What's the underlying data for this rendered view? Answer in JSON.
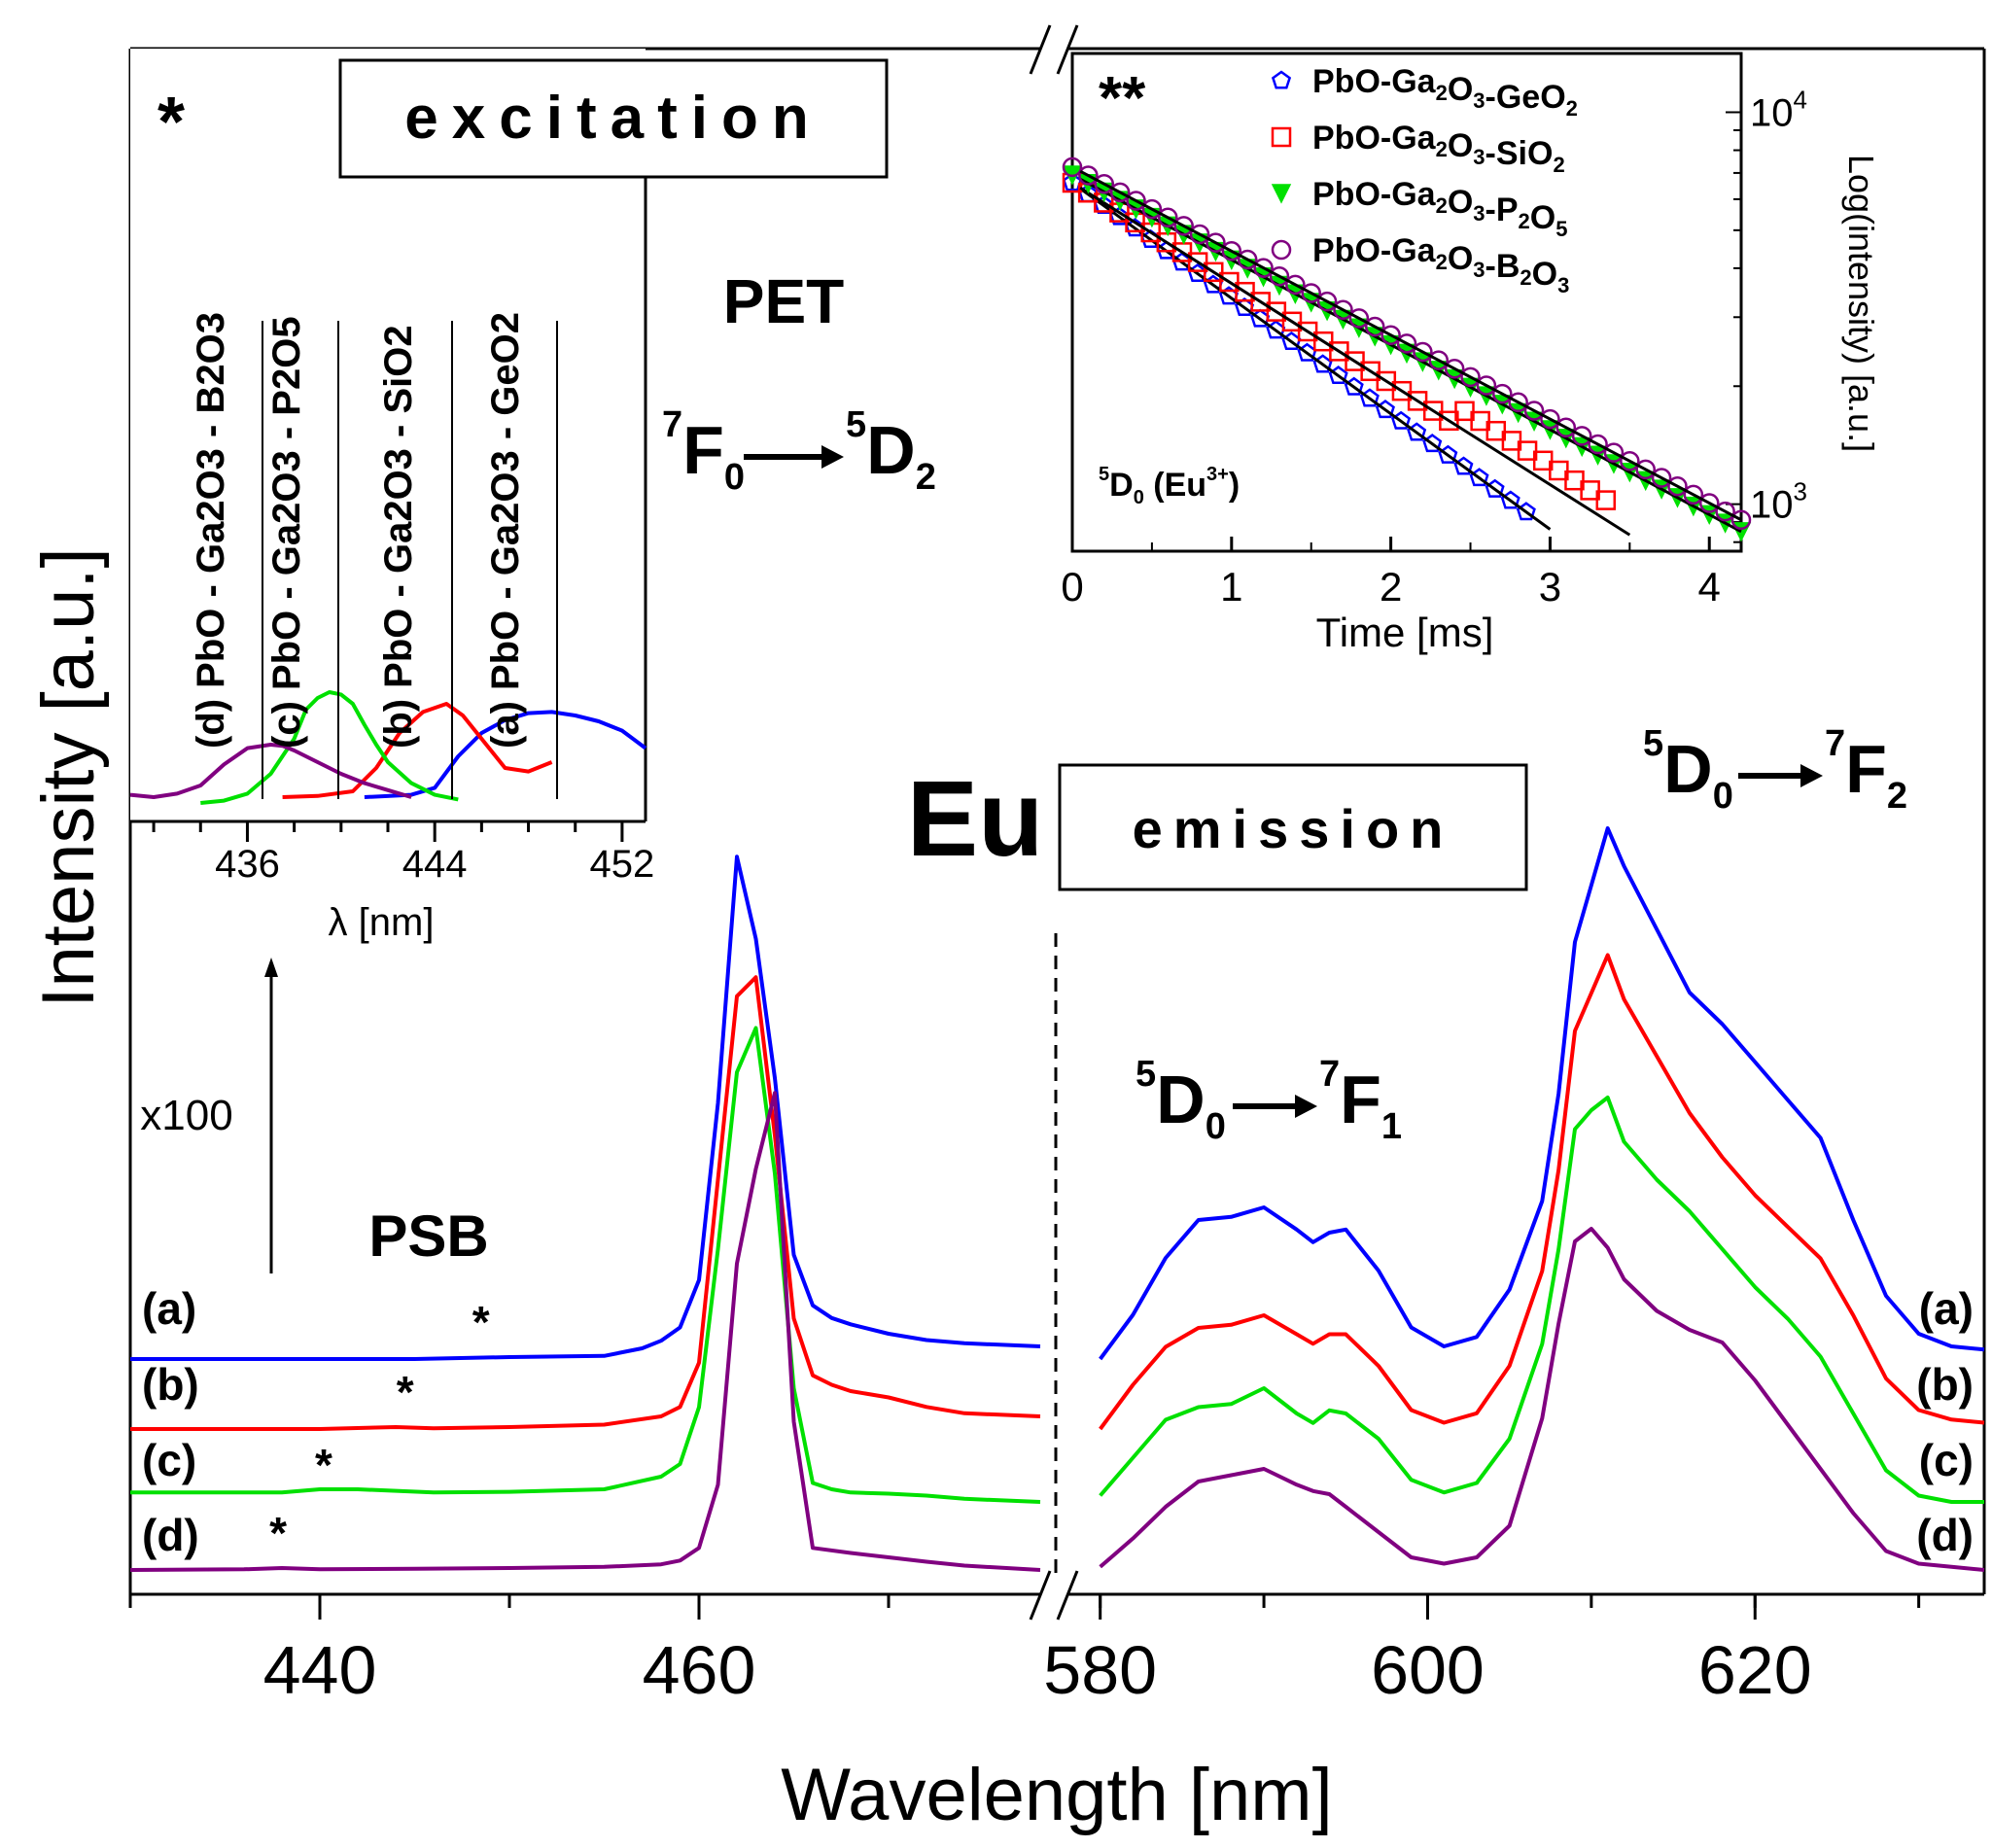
{
  "colors": {
    "a": "#0000ff",
    "b": "#ff0000",
    "c": "#00e000",
    "d": "#800080",
    "axis": "#000000"
  },
  "chart_data": [
    {
      "name": "main-spectrum",
      "type": "line",
      "title": "Eu",
      "xlabel": "Wavelength [nm]",
      "ylabel": "Intensity [a.u.]",
      "xlim_left": [
        430,
        478
      ],
      "xlim_right": [
        578,
        634
      ],
      "xticks_left": [
        "440",
        "460"
      ],
      "xticks_right": [
        "580",
        "600",
        "620"
      ],
      "panel_labels": {
        "excitation": "excitation",
        "emission": "emission",
        "element": "Eu",
        "pet": "PET",
        "psb": "PSB",
        "x100": "x100",
        "excitation_transition": "7F0 → 5D2",
        "emission_transition_1": "5D0 → 7F1",
        "emission_transition_2": "5D0 → 7F2",
        "star": "*"
      },
      "curve_labels": [
        "(a)",
        "(b)",
        "(c)",
        "(d)"
      ],
      "psb_star_positions_nm": [
        448.5,
        444.5,
        440.2,
        437.8
      ],
      "series_excitation": [
        {
          "name": "(a)",
          "x": [
            430,
            445,
            450,
            455,
            457,
            458,
            459,
            460,
            461,
            462,
            463,
            464,
            465,
            466,
            467,
            468,
            470,
            472,
            474,
            478
          ],
          "y": [
            0.195,
            0.195,
            0.198,
            0.2,
            0.212,
            0.224,
            0.245,
            0.32,
            0.6,
            0.99,
            0.86,
            0.64,
            0.36,
            0.28,
            0.26,
            0.25,
            0.235,
            0.225,
            0.22,
            0.215
          ]
        },
        {
          "name": "(b)",
          "x": [
            430,
            440,
            444,
            446,
            450,
            455,
            458,
            459,
            460,
            461,
            462,
            463,
            464,
            465,
            466,
            467,
            468,
            470,
            472,
            474,
            478
          ],
          "y": [
            0.155,
            0.155,
            0.158,
            0.156,
            0.158,
            0.162,
            0.175,
            0.19,
            0.26,
            0.55,
            0.84,
            0.87,
            0.62,
            0.33,
            0.24,
            0.225,
            0.215,
            0.205,
            0.19,
            0.18,
            0.175
          ]
        },
        {
          "name": "(c)",
          "x": [
            430,
            438,
            440,
            442,
            446,
            450,
            455,
            458,
            459,
            460,
            461,
            462,
            463,
            464,
            465,
            466,
            467,
            468,
            470,
            472,
            474,
            478
          ],
          "y": [
            0.115,
            0.115,
            0.12,
            0.12,
            0.115,
            0.116,
            0.12,
            0.14,
            0.16,
            0.25,
            0.5,
            0.78,
            0.85,
            0.62,
            0.28,
            0.13,
            0.12,
            0.115,
            0.113,
            0.11,
            0.105,
            0.1
          ]
        },
        {
          "name": "(d)",
          "x": [
            430,
            436,
            438,
            440,
            445,
            450,
            455,
            458,
            459,
            460,
            461,
            462,
            463,
            464,
            465,
            466,
            468,
            470,
            472,
            474,
            478
          ],
          "y": [
            0.065,
            0.066,
            0.068,
            0.066,
            0.067,
            0.068,
            0.07,
            0.074,
            0.08,
            0.1,
            0.2,
            0.55,
            0.7,
            0.82,
            0.3,
            0.1,
            0.092,
            0.085,
            0.078,
            0.072,
            0.065
          ]
        }
      ],
      "series_emission": [
        {
          "name": "(a)",
          "x": [
            580,
            582,
            584,
            586,
            588,
            590,
            592,
            593,
            594,
            595,
            597,
            599,
            601,
            603,
            605,
            607,
            608,
            609,
            610,
            611,
            612,
            614,
            616,
            618,
            620,
            622,
            624,
            626,
            628,
            630,
            632,
            634
          ],
          "y": [
            0.2,
            0.27,
            0.36,
            0.42,
            0.425,
            0.44,
            0.405,
            0.385,
            0.4,
            0.405,
            0.34,
            0.25,
            0.22,
            0.235,
            0.31,
            0.45,
            0.62,
            0.86,
            0.95,
            1.04,
            0.98,
            0.88,
            0.78,
            0.73,
            0.67,
            0.61,
            0.55,
            0.42,
            0.3,
            0.24,
            0.22,
            0.215
          ]
        },
        {
          "name": "(b)",
          "x": [
            580,
            582,
            584,
            586,
            588,
            590,
            592,
            593,
            594,
            595,
            597,
            599,
            601,
            603,
            605,
            607,
            608,
            609,
            610,
            611,
            612,
            614,
            616,
            618,
            620,
            622,
            624,
            626,
            628,
            630,
            632,
            634
          ],
          "y": [
            0.15,
            0.22,
            0.28,
            0.31,
            0.315,
            0.33,
            0.3,
            0.285,
            0.3,
            0.3,
            0.25,
            0.18,
            0.16,
            0.175,
            0.25,
            0.4,
            0.56,
            0.78,
            0.84,
            0.9,
            0.83,
            0.74,
            0.65,
            0.58,
            0.52,
            0.47,
            0.42,
            0.33,
            0.23,
            0.18,
            0.165,
            0.16
          ]
        },
        {
          "name": "(c)",
          "x": [
            580,
            582,
            584,
            586,
            588,
            590,
            592,
            593,
            594,
            595,
            597,
            599,
            601,
            603,
            605,
            607,
            608,
            609,
            610,
            611,
            612,
            614,
            616,
            618,
            620,
            622,
            624,
            626,
            628,
            630,
            632,
            634
          ],
          "y": [
            0.11,
            0.17,
            0.23,
            0.25,
            0.255,
            0.28,
            0.24,
            0.225,
            0.245,
            0.24,
            0.2,
            0.135,
            0.115,
            0.13,
            0.2,
            0.35,
            0.5,
            0.69,
            0.72,
            0.74,
            0.67,
            0.61,
            0.56,
            0.5,
            0.44,
            0.39,
            0.33,
            0.24,
            0.15,
            0.11,
            0.1,
            0.1
          ]
        },
        {
          "name": "(d)",
          "x": [
            580,
            582,
            584,
            586,
            588,
            590,
            592,
            593,
            594,
            595,
            597,
            599,
            601,
            603,
            605,
            607,
            608,
            609,
            610,
            611,
            612,
            614,
            616,
            618,
            620,
            622,
            624,
            626,
            628,
            630,
            632,
            634
          ],
          "y": [
            0.065,
            0.11,
            0.16,
            0.2,
            0.21,
            0.22,
            0.195,
            0.185,
            0.18,
            0.16,
            0.12,
            0.08,
            0.07,
            0.08,
            0.13,
            0.3,
            0.45,
            0.58,
            0.6,
            0.57,
            0.52,
            0.47,
            0.44,
            0.42,
            0.36,
            0.29,
            0.22,
            0.15,
            0.09,
            0.07,
            0.065,
            0.06
          ]
        }
      ]
    },
    {
      "name": "inset-excitation",
      "type": "line",
      "marker": "*",
      "xlabel": "λ [nm]",
      "xlim": [
        431,
        453
      ],
      "xticks": [
        "436",
        "444",
        "452"
      ],
      "peak_labels": [
        {
          "label": "(d) PbO - Ga2O3 - B2O3",
          "x": 436
        },
        {
          "label": "(c) PbO - Ga2O3 - P2O5",
          "x": 440
        },
        {
          "label": "(b) PbO - Ga2O3 - SiO2",
          "x": 444.5
        },
        {
          "label": "(a) PbO - Ga2O3 - GeO2",
          "x": 449
        }
      ],
      "series": [
        {
          "name": "(a)",
          "x": [
            441,
            443,
            444,
            445,
            446,
            447,
            448,
            449,
            450,
            451,
            452,
            453
          ],
          "y": [
            0.0,
            0.02,
            0.08,
            0.35,
            0.55,
            0.66,
            0.72,
            0.73,
            0.7,
            0.65,
            0.57,
            0.42
          ]
        },
        {
          "name": "(b)",
          "x": [
            437.5,
            439,
            440.5,
            441.5,
            442.5,
            443.5,
            444.5,
            445.2,
            446,
            447,
            448,
            449
          ],
          "y": [
            0.0,
            0.01,
            0.05,
            0.25,
            0.55,
            0.73,
            0.8,
            0.7,
            0.5,
            0.25,
            0.22,
            0.3
          ]
        },
        {
          "name": "(c)",
          "x": [
            434,
            435,
            436,
            437,
            438,
            438.5,
            439,
            439.5,
            440,
            440.5,
            441,
            441.5,
            442,
            443,
            444,
            445
          ],
          "y": [
            -0.05,
            -0.03,
            0.03,
            0.2,
            0.5,
            0.75,
            0.85,
            0.9,
            0.88,
            0.8,
            0.62,
            0.45,
            0.3,
            0.12,
            0.02,
            -0.02
          ]
        },
        {
          "name": "(d)",
          "x": [
            431,
            432,
            433,
            434,
            435,
            436,
            437,
            437.5,
            438,
            439,
            440,
            441,
            442,
            443
          ],
          "y": [
            0.02,
            0.0,
            0.03,
            0.1,
            0.28,
            0.42,
            0.45,
            0.44,
            0.4,
            0.3,
            0.2,
            0.12,
            0.06,
            0.0
          ]
        }
      ]
    },
    {
      "name": "inset-decay",
      "type": "scatter",
      "marker": "**",
      "xlabel": "Time [ms]",
      "ylabel": "Log(intensity) [a.u.]",
      "annotation": "5D0 (Eu3+)",
      "xlim": [
        0,
        4.2
      ],
      "xticks": [
        "0",
        "1",
        "2",
        "3",
        "4"
      ],
      "yticks_labels": [
        "10^3",
        "10^4"
      ],
      "ylog_range": [
        2.88,
        4.15
      ],
      "legend": [
        {
          "label": "PbO-Ga2O3-GeO2",
          "marker": "pentagon"
        },
        {
          "label": "PbO-Ga2O3-SiO2",
          "marker": "square"
        },
        {
          "label": "PbO-Ga2O3-P2O5",
          "marker": "triangle-down"
        },
        {
          "label": "PbO-Ga2O3-B2O3",
          "marker": "circle"
        }
      ],
      "series": [
        {
          "name": "PbO-Ga2O3-GeO2",
          "log_start": 3.82,
          "log_end": 2.98,
          "t_end": 2.85
        },
        {
          "name": "PbO-Ga2O3-SiO2",
          "log_start": 3.82,
          "log_end": 2.96,
          "t_end": 3.35
        },
        {
          "name": "PbO-Ga2O3-P2O5",
          "log_start": 3.84,
          "log_end": 2.93,
          "t_end": 4.2
        },
        {
          "name": "PbO-Ga2O3-B2O3",
          "log_start": 3.86,
          "log_end": 2.96,
          "t_end": 4.2
        }
      ]
    }
  ]
}
